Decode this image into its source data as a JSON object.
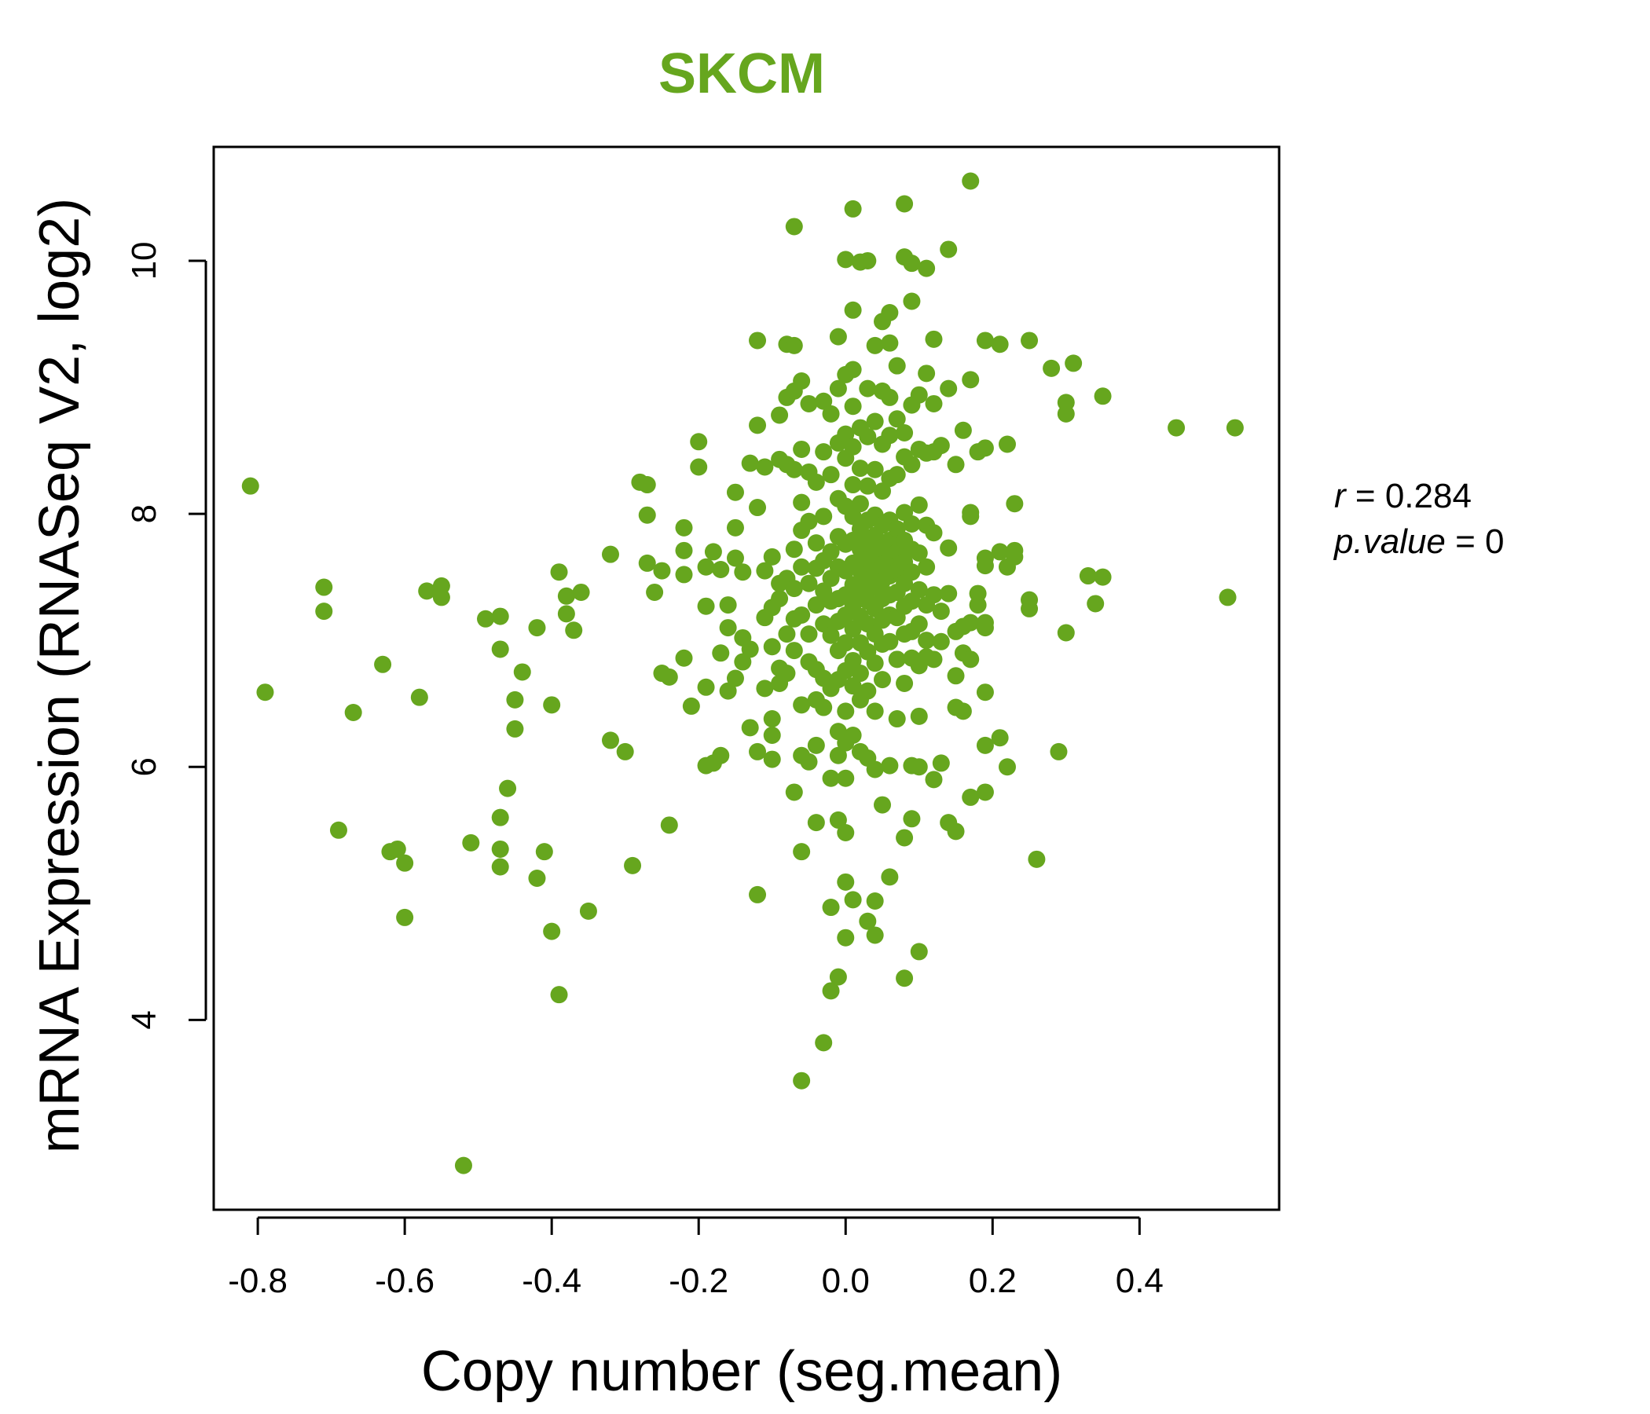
{
  "chart_data": {
    "type": "scatter",
    "title": "SKCM",
    "xlabel": "Copy number (seg.mean)",
    "ylabel": "mRNA Expression (RNASeq V2, log2)",
    "xlim": [
      -0.86,
      0.59
    ],
    "ylim": [
      2.5,
      10.9
    ],
    "xticks": [
      -0.8,
      -0.6,
      -0.4,
      -0.2,
      0.0,
      0.2,
      0.4
    ],
    "xtick_labels": [
      "-0.8",
      "-0.6",
      "-0.4",
      "-0.2",
      "0.0",
      "0.2",
      "0.4"
    ],
    "yticks": [
      4,
      6,
      8,
      10
    ],
    "ytick_labels": [
      "4",
      "6",
      "8",
      "10"
    ],
    "grid": false,
    "colors": {
      "points": "#66a61e",
      "title": "#66a61e",
      "axis": "#000000"
    },
    "stats": {
      "r_label": "r",
      "r_value": "0.284",
      "p_label": "p.value",
      "p_value": "0"
    },
    "points": [
      [
        -0.81,
        8.22
      ],
      [
        -0.79,
        6.59
      ],
      [
        -0.71,
        7.42
      ],
      [
        -0.71,
        7.23
      ],
      [
        -0.69,
        5.5
      ],
      [
        -0.67,
        6.43
      ],
      [
        -0.63,
        6.81
      ],
      [
        -0.62,
        5.33
      ],
      [
        -0.61,
        5.35
      ],
      [
        -0.6,
        5.24
      ],
      [
        -0.6,
        4.81
      ],
      [
        -0.58,
        6.55
      ],
      [
        -0.57,
        7.39
      ],
      [
        -0.55,
        7.43
      ],
      [
        -0.55,
        7.34
      ],
      [
        -0.52,
        2.85
      ],
      [
        -0.51,
        5.4
      ],
      [
        -0.49,
        7.17
      ],
      [
        -0.47,
        7.19
      ],
      [
        -0.47,
        6.93
      ],
      [
        -0.47,
        5.35
      ],
      [
        -0.47,
        5.21
      ],
      [
        -0.47,
        5.6
      ],
      [
        -0.46,
        5.83
      ],
      [
        -0.45,
        6.53
      ],
      [
        -0.45,
        6.3
      ],
      [
        -0.44,
        6.75
      ],
      [
        -0.42,
        7.1
      ],
      [
        -0.42,
        5.12
      ],
      [
        -0.41,
        5.33
      ],
      [
        -0.4,
        6.49
      ],
      [
        -0.4,
        4.7
      ],
      [
        -0.39,
        7.54
      ],
      [
        -0.39,
        4.2
      ],
      [
        -0.38,
        7.35
      ],
      [
        -0.38,
        7.21
      ],
      [
        -0.37,
        7.08
      ],
      [
        -0.36,
        7.38
      ],
      [
        -0.35,
        4.86
      ],
      [
        -0.32,
        7.68
      ],
      [
        -0.32,
        6.21
      ],
      [
        -0.3,
        6.12
      ],
      [
        -0.29,
        5.22
      ],
      [
        -0.28,
        8.25
      ],
      [
        -0.27,
        8.23
      ],
      [
        -0.27,
        7.99
      ],
      [
        -0.26,
        7.38
      ],
      [
        -0.27,
        7.61
      ],
      [
        -0.25,
        7.55
      ],
      [
        -0.25,
        6.74
      ],
      [
        -0.24,
        6.71
      ],
      [
        -0.24,
        5.54
      ],
      [
        -0.22,
        7.89
      ],
      [
        -0.22,
        7.71
      ],
      [
        -0.22,
        7.52
      ],
      [
        -0.22,
        6.86
      ],
      [
        -0.21,
        6.48
      ],
      [
        -0.2,
        8.37
      ],
      [
        -0.2,
        8.57
      ],
      [
        -0.19,
        7.58
      ],
      [
        -0.19,
        7.27
      ],
      [
        -0.19,
        6.63
      ],
      [
        -0.19,
        6.01
      ],
      [
        -0.18,
        7.7
      ],
      [
        -0.18,
        6.03
      ],
      [
        -0.17,
        7.56
      ],
      [
        -0.17,
        6.9
      ],
      [
        -0.17,
        6.09
      ],
      [
        -0.16,
        7.28
      ],
      [
        -0.16,
        7.1
      ],
      [
        -0.16,
        6.6
      ],
      [
        -0.15,
        8.17
      ],
      [
        -0.15,
        7.89
      ],
      [
        -0.15,
        7.65
      ],
      [
        -0.15,
        6.7
      ],
      [
        -0.14,
        7.54
      ],
      [
        -0.14,
        7.02
      ],
      [
        -0.14,
        6.83
      ],
      [
        -0.13,
        8.4
      ],
      [
        -0.13,
        6.93
      ],
      [
        -0.13,
        6.31
      ],
      [
        -0.12,
        8.7
      ],
      [
        -0.12,
        8.05
      ],
      [
        -0.12,
        6.12
      ],
      [
        -0.12,
        9.37
      ],
      [
        -0.12,
        4.99
      ],
      [
        -0.11,
        8.37
      ],
      [
        -0.11,
        7.55
      ],
      [
        -0.11,
        7.18
      ],
      [
        -0.11,
        6.62
      ],
      [
        -0.1,
        7.66
      ],
      [
        -0.1,
        7.26
      ],
      [
        -0.1,
        6.95
      ],
      [
        -0.1,
        6.38
      ],
      [
        -0.1,
        6.25
      ],
      [
        -0.1,
        6.06
      ],
      [
        -0.09,
        8.78
      ],
      [
        -0.09,
        8.43
      ],
      [
        -0.09,
        7.45
      ],
      [
        -0.09,
        7.33
      ],
      [
        -0.09,
        6.78
      ],
      [
        -0.09,
        6.66
      ],
      [
        -0.08,
        9.34
      ],
      [
        -0.08,
        8.92
      ],
      [
        -0.08,
        8.39
      ],
      [
        -0.08,
        7.49
      ],
      [
        -0.08,
        7.05
      ],
      [
        -0.08,
        6.74
      ],
      [
        -0.07,
        9.33
      ],
      [
        -0.07,
        8.97
      ],
      [
        -0.07,
        8.35
      ],
      [
        -0.07,
        7.72
      ],
      [
        -0.07,
        7.41
      ],
      [
        -0.07,
        7.17
      ],
      [
        -0.07,
        6.92
      ],
      [
        -0.07,
        5.8
      ],
      [
        -0.07,
        10.27
      ],
      [
        -0.06,
        9.05
      ],
      [
        -0.06,
        8.51
      ],
      [
        -0.06,
        8.09
      ],
      [
        -0.06,
        7.87
      ],
      [
        -0.06,
        7.58
      ],
      [
        -0.06,
        7.2
      ],
      [
        -0.06,
        6.49
      ],
      [
        -0.06,
        6.09
      ],
      [
        -0.06,
        5.33
      ],
      [
        -0.06,
        3.52
      ],
      [
        -0.05,
        8.87
      ],
      [
        -0.05,
        8.33
      ],
      [
        -0.05,
        7.94
      ],
      [
        -0.05,
        7.45
      ],
      [
        -0.05,
        7.05
      ],
      [
        -0.05,
        6.83
      ],
      [
        -0.05,
        6.04
      ],
      [
        -0.04,
        8.25
      ],
      [
        -0.04,
        7.77
      ],
      [
        -0.04,
        7.57
      ],
      [
        -0.04,
        7.28
      ],
      [
        -0.04,
        6.77
      ],
      [
        -0.04,
        6.53
      ],
      [
        -0.04,
        6.17
      ],
      [
        -0.04,
        5.56
      ],
      [
        -0.03,
        8.89
      ],
      [
        -0.03,
        8.49
      ],
      [
        -0.03,
        7.98
      ],
      [
        -0.03,
        7.63
      ],
      [
        -0.03,
        7.39
      ],
      [
        -0.03,
        7.13
      ],
      [
        -0.03,
        6.7
      ],
      [
        -0.03,
        6.47
      ],
      [
        -0.03,
        3.82
      ],
      [
        -0.02,
        8.79
      ],
      [
        -0.02,
        8.31
      ],
      [
        -0.02,
        7.7
      ],
      [
        -0.02,
        7.49
      ],
      [
        -0.02,
        7.31
      ],
      [
        -0.02,
        7.04
      ],
      [
        -0.02,
        6.62
      ],
      [
        -0.02,
        5.91
      ],
      [
        -0.02,
        4.89
      ],
      [
        -0.02,
        4.23
      ],
      [
        -0.01,
        9.4
      ],
      [
        -0.01,
        8.99
      ],
      [
        -0.01,
        8.56
      ],
      [
        -0.01,
        8.12
      ],
      [
        -0.01,
        7.82
      ],
      [
        -0.01,
        7.58
      ],
      [
        -0.01,
        7.33
      ],
      [
        -0.01,
        7.15
      ],
      [
        -0.01,
        6.92
      ],
      [
        -0.01,
        6.69
      ],
      [
        -0.01,
        6.28
      ],
      [
        -0.01,
        6.09
      ],
      [
        -0.01,
        5.58
      ],
      [
        -0.01,
        4.34
      ],
      [
        0.0,
        10.01
      ],
      [
        0.0,
        9.1
      ],
      [
        0.0,
        8.63
      ],
      [
        0.0,
        8.44
      ],
      [
        0.0,
        8.06
      ],
      [
        0.0,
        7.76
      ],
      [
        0.0,
        7.55
      ],
      [
        0.0,
        7.36
      ],
      [
        0.0,
        7.2
      ],
      [
        0.0,
        6.98
      ],
      [
        0.0,
        6.76
      ],
      [
        0.0,
        6.44
      ],
      [
        0.0,
        6.19
      ],
      [
        0.0,
        5.91
      ],
      [
        0.0,
        5.48
      ],
      [
        0.0,
        5.09
      ],
      [
        0.0,
        4.65
      ],
      [
        0.01,
        10.41
      ],
      [
        0.01,
        9.61
      ],
      [
        0.01,
        9.14
      ],
      [
        0.01,
        8.85
      ],
      [
        0.01,
        8.53
      ],
      [
        0.01,
        8.23
      ],
      [
        0.01,
        7.98
      ],
      [
        0.01,
        7.79
      ],
      [
        0.01,
        7.61
      ],
      [
        0.01,
        7.44
      ],
      [
        0.01,
        7.28
      ],
      [
        0.01,
        7.09
      ],
      [
        0.01,
        6.84
      ],
      [
        0.01,
        6.64
      ],
      [
        0.01,
        6.25
      ],
      [
        0.01,
        4.95
      ],
      [
        0.02,
        9.99
      ],
      [
        0.02,
        8.68
      ],
      [
        0.02,
        8.36
      ],
      [
        0.02,
        8.08
      ],
      [
        0.02,
        7.88
      ],
      [
        0.02,
        7.72
      ],
      [
        0.02,
        7.55
      ],
      [
        0.02,
        7.38
      ],
      [
        0.02,
        7.19
      ],
      [
        0.02,
        6.98
      ],
      [
        0.02,
        6.74
      ],
      [
        0.02,
        6.53
      ],
      [
        0.02,
        6.12
      ],
      [
        0.03,
        10.0
      ],
      [
        0.03,
        8.99
      ],
      [
        0.03,
        8.61
      ],
      [
        0.03,
        8.22
      ],
      [
        0.03,
        7.95
      ],
      [
        0.03,
        7.78
      ],
      [
        0.03,
        7.64
      ],
      [
        0.03,
        7.48
      ],
      [
        0.03,
        7.31
      ],
      [
        0.03,
        7.13
      ],
      [
        0.03,
        6.91
      ],
      [
        0.03,
        6.6
      ],
      [
        0.03,
        6.07
      ],
      [
        0.03,
        4.78
      ],
      [
        0.04,
        9.33
      ],
      [
        0.04,
        8.73
      ],
      [
        0.04,
        8.35
      ],
      [
        0.04,
        7.99
      ],
      [
        0.04,
        7.83
      ],
      [
        0.04,
        7.69
      ],
      [
        0.04,
        7.55
      ],
      [
        0.04,
        7.42
      ],
      [
        0.04,
        7.25
      ],
      [
        0.04,
        7.05
      ],
      [
        0.04,
        6.82
      ],
      [
        0.04,
        6.44
      ],
      [
        0.04,
        5.98
      ],
      [
        0.04,
        4.94
      ],
      [
        0.04,
        4.67
      ],
      [
        0.05,
        9.52
      ],
      [
        0.05,
        8.97
      ],
      [
        0.05,
        8.55
      ],
      [
        0.05,
        8.18
      ],
      [
        0.05,
        7.91
      ],
      [
        0.05,
        7.73
      ],
      [
        0.05,
        7.6
      ],
      [
        0.05,
        7.47
      ],
      [
        0.05,
        7.33
      ],
      [
        0.05,
        7.16
      ],
      [
        0.05,
        6.97
      ],
      [
        0.05,
        6.69
      ],
      [
        0.05,
        5.7
      ],
      [
        0.06,
        9.59
      ],
      [
        0.06,
        9.35
      ],
      [
        0.06,
        8.92
      ],
      [
        0.06,
        8.62
      ],
      [
        0.06,
        8.28
      ],
      [
        0.06,
        7.95
      ],
      [
        0.06,
        7.79
      ],
      [
        0.06,
        7.65
      ],
      [
        0.06,
        7.51
      ],
      [
        0.06,
        7.36
      ],
      [
        0.06,
        7.2
      ],
      [
        0.06,
        6.99
      ],
      [
        0.06,
        6.01
      ],
      [
        0.06,
        5.13
      ],
      [
        0.07,
        9.17
      ],
      [
        0.07,
        8.75
      ],
      [
        0.07,
        8.31
      ],
      [
        0.07,
        7.88
      ],
      [
        0.07,
        7.7
      ],
      [
        0.07,
        7.55
      ],
      [
        0.07,
        7.38
      ],
      [
        0.07,
        7.18
      ],
      [
        0.07,
        6.85
      ],
      [
        0.07,
        6.38
      ],
      [
        0.08,
        10.03
      ],
      [
        0.08,
        10.45
      ],
      [
        0.08,
        8.64
      ],
      [
        0.08,
        8.45
      ],
      [
        0.08,
        8.01
      ],
      [
        0.08,
        7.79
      ],
      [
        0.08,
        7.62
      ],
      [
        0.08,
        7.45
      ],
      [
        0.08,
        7.27
      ],
      [
        0.08,
        7.05
      ],
      [
        0.08,
        6.66
      ],
      [
        0.08,
        5.44
      ],
      [
        0.08,
        4.33
      ],
      [
        0.09,
        9.98
      ],
      [
        0.09,
        9.68
      ],
      [
        0.09,
        8.86
      ],
      [
        0.09,
        8.39
      ],
      [
        0.09,
        7.92
      ],
      [
        0.09,
        7.72
      ],
      [
        0.09,
        7.54
      ],
      [
        0.09,
        7.31
      ],
      [
        0.09,
        7.07
      ],
      [
        0.09,
        6.86
      ],
      [
        0.09,
        6.01
      ],
      [
        0.09,
        5.59
      ],
      [
        0.1,
        8.94
      ],
      [
        0.1,
        8.51
      ],
      [
        0.1,
        8.07
      ],
      [
        0.1,
        7.69
      ],
      [
        0.1,
        7.4
      ],
      [
        0.1,
        7.13
      ],
      [
        0.1,
        6.8
      ],
      [
        0.1,
        6.4
      ],
      [
        0.1,
        6.0
      ],
      [
        0.1,
        4.54
      ],
      [
        0.11,
        9.94
      ],
      [
        0.11,
        9.11
      ],
      [
        0.11,
        8.48
      ],
      [
        0.11,
        7.91
      ],
      [
        0.11,
        7.58
      ],
      [
        0.11,
        7.28
      ],
      [
        0.11,
        7.0
      ],
      [
        0.11,
        6.87
      ],
      [
        0.12,
        9.38
      ],
      [
        0.12,
        8.87
      ],
      [
        0.12,
        8.49
      ],
      [
        0.12,
        7.85
      ],
      [
        0.12,
        7.36
      ],
      [
        0.12,
        6.85
      ],
      [
        0.12,
        5.9
      ],
      [
        0.13,
        8.54
      ],
      [
        0.13,
        7.23
      ],
      [
        0.13,
        6.99
      ],
      [
        0.13,
        6.03
      ],
      [
        0.14,
        10.09
      ],
      [
        0.14,
        8.99
      ],
      [
        0.14,
        7.73
      ],
      [
        0.14,
        7.37
      ],
      [
        0.14,
        5.56
      ],
      [
        0.15,
        8.39
      ],
      [
        0.15,
        7.07
      ],
      [
        0.15,
        6.72
      ],
      [
        0.15,
        6.47
      ],
      [
        0.15,
        5.49
      ],
      [
        0.16,
        8.66
      ],
      [
        0.16,
        7.11
      ],
      [
        0.16,
        6.9
      ],
      [
        0.16,
        6.44
      ],
      [
        0.17,
        10.63
      ],
      [
        0.17,
        9.06
      ],
      [
        0.17,
        8.01
      ],
      [
        0.17,
        7.98
      ],
      [
        0.17,
        7.14
      ],
      [
        0.17,
        6.85
      ],
      [
        0.17,
        5.76
      ],
      [
        0.18,
        7.37
      ],
      [
        0.18,
        7.28
      ],
      [
        0.18,
        8.49
      ],
      [
        0.19,
        9.37
      ],
      [
        0.19,
        8.52
      ],
      [
        0.19,
        7.65
      ],
      [
        0.19,
        7.59
      ],
      [
        0.19,
        7.14
      ],
      [
        0.19,
        7.1
      ],
      [
        0.19,
        6.59
      ],
      [
        0.19,
        6.17
      ],
      [
        0.19,
        5.8
      ],
      [
        0.21,
        9.34
      ],
      [
        0.21,
        7.7
      ],
      [
        0.21,
        6.23
      ],
      [
        0.22,
        8.55
      ],
      [
        0.22,
        7.58
      ],
      [
        0.22,
        6.0
      ],
      [
        0.23,
        7.71
      ],
      [
        0.23,
        7.66
      ],
      [
        0.23,
        8.08
      ],
      [
        0.25,
        9.37
      ],
      [
        0.25,
        7.32
      ],
      [
        0.25,
        7.25
      ],
      [
        0.26,
        5.27
      ],
      [
        0.28,
        9.15
      ],
      [
        0.29,
        6.12
      ],
      [
        0.3,
        8.88
      ],
      [
        0.3,
        8.79
      ],
      [
        0.3,
        7.06
      ],
      [
        0.31,
        9.19
      ],
      [
        0.33,
        7.51
      ],
      [
        0.34,
        7.29
      ],
      [
        0.35,
        7.5
      ],
      [
        0.35,
        8.93
      ],
      [
        0.45,
        8.68
      ],
      [
        0.52,
        7.34
      ],
      [
        0.53,
        8.68
      ]
    ]
  }
}
